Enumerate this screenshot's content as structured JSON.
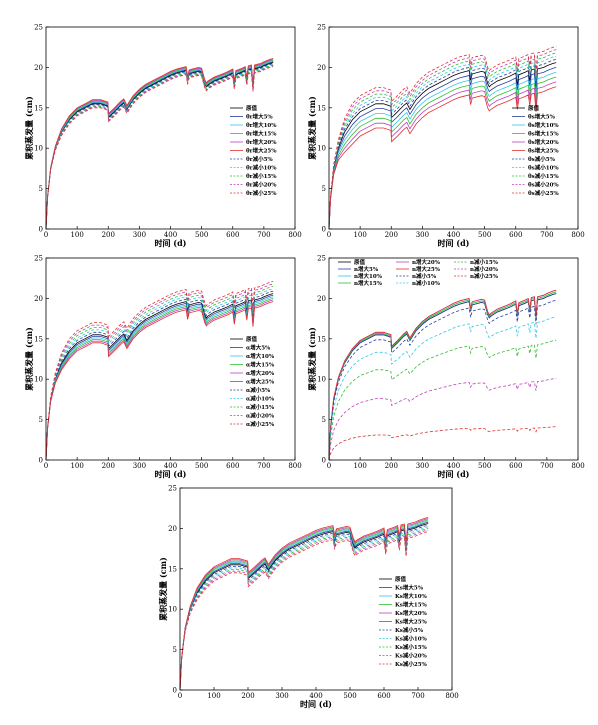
{
  "chart_data": [
    {
      "type": "line",
      "xlabel": "时间 (d)",
      "ylabel": "累积蒸发量 (cm)",
      "xlim": [
        0,
        800
      ],
      "ylim": [
        0,
        25
      ],
      "xticks": [
        "0",
        "100",
        "200",
        "300",
        "400",
        "500",
        "600",
        "700",
        "800"
      ],
      "yticks": [
        "0",
        "5",
        "10",
        "15",
        "20",
        "25"
      ],
      "legend_position": "bottom-right",
      "series": [
        {
          "name": "原值",
          "color": "#000000",
          "dash": "solid",
          "offset": 0
        },
        {
          "name": "θr增大5%",
          "color": "#2a3f9e",
          "dash": "solid",
          "offset": 0.1
        },
        {
          "name": "θr增大10%",
          "color": "#34c7e8",
          "dash": "solid",
          "offset": 0.2
        },
        {
          "name": "θr增大15%",
          "color": "#2fbf2f",
          "dash": "solid",
          "offset": 0.3
        },
        {
          "name": "θr增大20%",
          "color": "#c040c0",
          "dash": "solid",
          "offset": 0.4
        },
        {
          "name": "θr增大25%",
          "color": "#e03030",
          "dash": "solid",
          "offset": 0.5
        },
        {
          "name": "θr减小5%",
          "color": "#2a3f9e",
          "dash": "dash",
          "offset": -0.1
        },
        {
          "name": "θr减小10%",
          "color": "#34c7e8",
          "dash": "dash",
          "offset": -0.2
        },
        {
          "name": "θr减小15%",
          "color": "#2fbf2f",
          "dash": "dash",
          "offset": -0.3
        },
        {
          "name": "θr减小20%",
          "color": "#c040c0",
          "dash": "dash",
          "offset": -0.4
        },
        {
          "name": "θr减小25%",
          "color": "#e03030",
          "dash": "dash",
          "offset": -0.5
        }
      ]
    },
    {
      "type": "line",
      "xlabel": "时间 (d)",
      "ylabel": "累积蒸发量 (cm)",
      "xlim": [
        0,
        800
      ],
      "ylim": [
        0,
        25
      ],
      "xticks": [
        "0",
        "100",
        "200",
        "300",
        "400",
        "500",
        "600",
        "700",
        "800"
      ],
      "yticks": [
        "0",
        "5",
        "10",
        "15",
        "20",
        "25"
      ],
      "legend_position": "bottom-right",
      "series": [
        {
          "name": "原值",
          "color": "#000000",
          "dash": "solid",
          "offset": 0
        },
        {
          "name": "θs增大5%",
          "color": "#2a3f9e",
          "dash": "solid",
          "offset": -0.6
        },
        {
          "name": "θs增大10%",
          "color": "#34c7e8",
          "dash": "solid",
          "offset": -1.2
        },
        {
          "name": "θs增大15%",
          "color": "#2fbf2f",
          "dash": "solid",
          "offset": -1.8
        },
        {
          "name": "θs增大20%",
          "color": "#c040c0",
          "dash": "solid",
          "offset": -2.4
        },
        {
          "name": "θs增大25%",
          "color": "#e03030",
          "dash": "solid",
          "offset": -3.0
        },
        {
          "name": "θs减小5%",
          "color": "#2a3f9e",
          "dash": "dash",
          "offset": 0.4
        },
        {
          "name": "θs减小10%",
          "color": "#34c7e8",
          "dash": "dash",
          "offset": 0.8
        },
        {
          "name": "θs减小15%",
          "color": "#2fbf2f",
          "dash": "dash",
          "offset": 1.2
        },
        {
          "name": "θs减小20%",
          "color": "#c040c0",
          "dash": "dash",
          "offset": 1.6
        },
        {
          "name": "θs减小25%",
          "color": "#e03030",
          "dash": "dash",
          "offset": 2.0
        }
      ]
    },
    {
      "type": "line",
      "xlabel": "时间 (d)",
      "ylabel": "累积蒸发量 (cm)",
      "xlim": [
        0,
        800
      ],
      "ylim": [
        0,
        25
      ],
      "xticks": [
        "0",
        "100",
        "200",
        "300",
        "400",
        "500",
        "600",
        "700",
        "800"
      ],
      "yticks": [
        "0",
        "5",
        "10",
        "15",
        "20",
        "25"
      ],
      "legend_position": "bottom-right",
      "series": [
        {
          "name": "原值",
          "color": "#000000",
          "dash": "solid",
          "offset": 0
        },
        {
          "name": "α增大5%",
          "color": "#2a3f9e",
          "dash": "solid",
          "offset": -0.2
        },
        {
          "name": "α增大10%",
          "color": "#34c7e8",
          "dash": "solid",
          "offset": -0.4
        },
        {
          "name": "α增大15%",
          "color": "#2fbf2f",
          "dash": "solid",
          "offset": -0.6
        },
        {
          "name": "α增大20%",
          "color": "#c040c0",
          "dash": "solid",
          "offset": -0.8
        },
        {
          "name": "α增大25%",
          "color": "#e03030",
          "dash": "solid",
          "offset": -1.0
        },
        {
          "name": "α减小5%",
          "color": "#2a3f9e",
          "dash": "dash",
          "offset": 0.3
        },
        {
          "name": "α减小10%",
          "color": "#34c7e8",
          "dash": "dash",
          "offset": 0.6
        },
        {
          "name": "α减小15%",
          "color": "#2fbf2f",
          "dash": "dash",
          "offset": 0.9
        },
        {
          "name": "α减小20%",
          "color": "#c040c0",
          "dash": "dash",
          "offset": 1.2
        },
        {
          "name": "α减小25%",
          "color": "#e03030",
          "dash": "dash",
          "offset": 1.5
        }
      ]
    },
    {
      "type": "line",
      "xlabel": "时间 (d)",
      "ylabel": "累积蒸发量 (cm)",
      "xlim": [
        0,
        800
      ],
      "ylim": [
        0,
        25
      ],
      "xticks": [
        "0",
        "100",
        "200",
        "300",
        "400",
        "500",
        "600",
        "700",
        "800"
      ],
      "yticks": [
        "0",
        "5",
        "10",
        "15",
        "20",
        "25"
      ],
      "legend_position": "top (3 columns)",
      "series": [
        {
          "name": "原值",
          "color": "#000000",
          "dash": "solid",
          "scale": 1.0
        },
        {
          "name": "n增大5%",
          "color": "#2a3f9e",
          "dash": "solid",
          "scale": 1.0
        },
        {
          "name": "n增大10%",
          "color": "#34c7e8",
          "dash": "solid",
          "scale": 1.01
        },
        {
          "name": "n增大15%",
          "color": "#2fbf2f",
          "dash": "solid",
          "scale": 1.01
        },
        {
          "name": "n增大20%",
          "color": "#c040c0",
          "dash": "solid",
          "scale": 1.02
        },
        {
          "name": "n增大25%",
          "color": "#e03030",
          "dash": "solid",
          "scale": 1.02
        },
        {
          "name": "n减小5%",
          "color": "#2a3f9e",
          "dash": "dash",
          "scale": 0.96
        },
        {
          "name": "n减小10%",
          "color": "#34c7e8",
          "dash": "dash",
          "scale": 0.86
        },
        {
          "name": "n减小15%",
          "color": "#2fbf2f",
          "dash": "dash",
          "scale": 0.72
        },
        {
          "name": "n减小20%",
          "color": "#c040c0",
          "dash": "dash",
          "scale": 0.49
        },
        {
          "name": "n减小25%",
          "color": "#e03030",
          "dash": "dash",
          "scale": 0.2
        }
      ]
    },
    {
      "type": "line",
      "xlabel": "时间 (d)",
      "ylabel": "累积蒸发量 (cm)",
      "xlim": [
        0,
        800
      ],
      "ylim": [
        0,
        25
      ],
      "xticks": [
        "0",
        "100",
        "200",
        "300",
        "400",
        "500",
        "600",
        "700",
        "800"
      ],
      "yticks": [
        "0",
        "5",
        "10",
        "15",
        "20",
        "25"
      ],
      "legend_position": "bottom-right",
      "series": [
        {
          "name": "原值",
          "color": "#000000",
          "dash": "solid",
          "offset": 0
        },
        {
          "name": "Ks增大5%",
          "color": "#2a3f9e",
          "dash": "solid",
          "offset": 0.15
        },
        {
          "name": "Ks增大10%",
          "color": "#34c7e8",
          "dash": "solid",
          "offset": 0.3
        },
        {
          "name": "Ks增大15%",
          "color": "#2fbf2f",
          "dash": "solid",
          "offset": 0.45
        },
        {
          "name": "Ks增大20%",
          "color": "#c040c0",
          "dash": "solid",
          "offset": 0.6
        },
        {
          "name": "Ks增大25%",
          "color": "#e03030",
          "dash": "solid",
          "offset": 0.75
        },
        {
          "name": "Ks减小5%",
          "color": "#2a3f9e",
          "dash": "dash",
          "offset": -0.2
        },
        {
          "name": "Ks减小10%",
          "color": "#34c7e8",
          "dash": "dash",
          "offset": -0.4
        },
        {
          "name": "Ks减小15%",
          "color": "#2fbf2f",
          "dash": "dash",
          "offset": -0.6
        },
        {
          "name": "Ks减小20%",
          "color": "#c040c0",
          "dash": "dash",
          "offset": -0.8
        },
        {
          "name": "Ks减小25%",
          "color": "#e03030",
          "dash": "dash",
          "offset": -1.0
        }
      ]
    }
  ],
  "base_curve": {
    "x": [
      0,
      5,
      15,
      30,
      50,
      75,
      100,
      125,
      150,
      175,
      199,
      201,
      220,
      240,
      250,
      260,
      280,
      300,
      320,
      350,
      380,
      400,
      420,
      440,
      450,
      455,
      460,
      490,
      500,
      510,
      515,
      520,
      540,
      560,
      580,
      600,
      605,
      610,
      630,
      640,
      645,
      650,
      660,
      665,
      670,
      690,
      700,
      720,
      730
    ],
    "y": [
      0,
      4,
      7.5,
      10,
      12,
      13.5,
      14.5,
      15,
      15.5,
      15.5,
      15.2,
      13.8,
      14.5,
      15.3,
      15.6,
      14.8,
      16,
      16.8,
      17.4,
      18,
      18.6,
      19,
      19.3,
      19.5,
      19.6,
      18.4,
      19.2,
      19.5,
      19.4,
      18,
      17.6,
      17.8,
      18.3,
      18.6,
      18.9,
      19.3,
      17.8,
      19.1,
      19.4,
      19.6,
      18.3,
      19.7,
      19.8,
      17.5,
      19.8,
      20,
      20.2,
      20.5,
      20.6
    ]
  }
}
